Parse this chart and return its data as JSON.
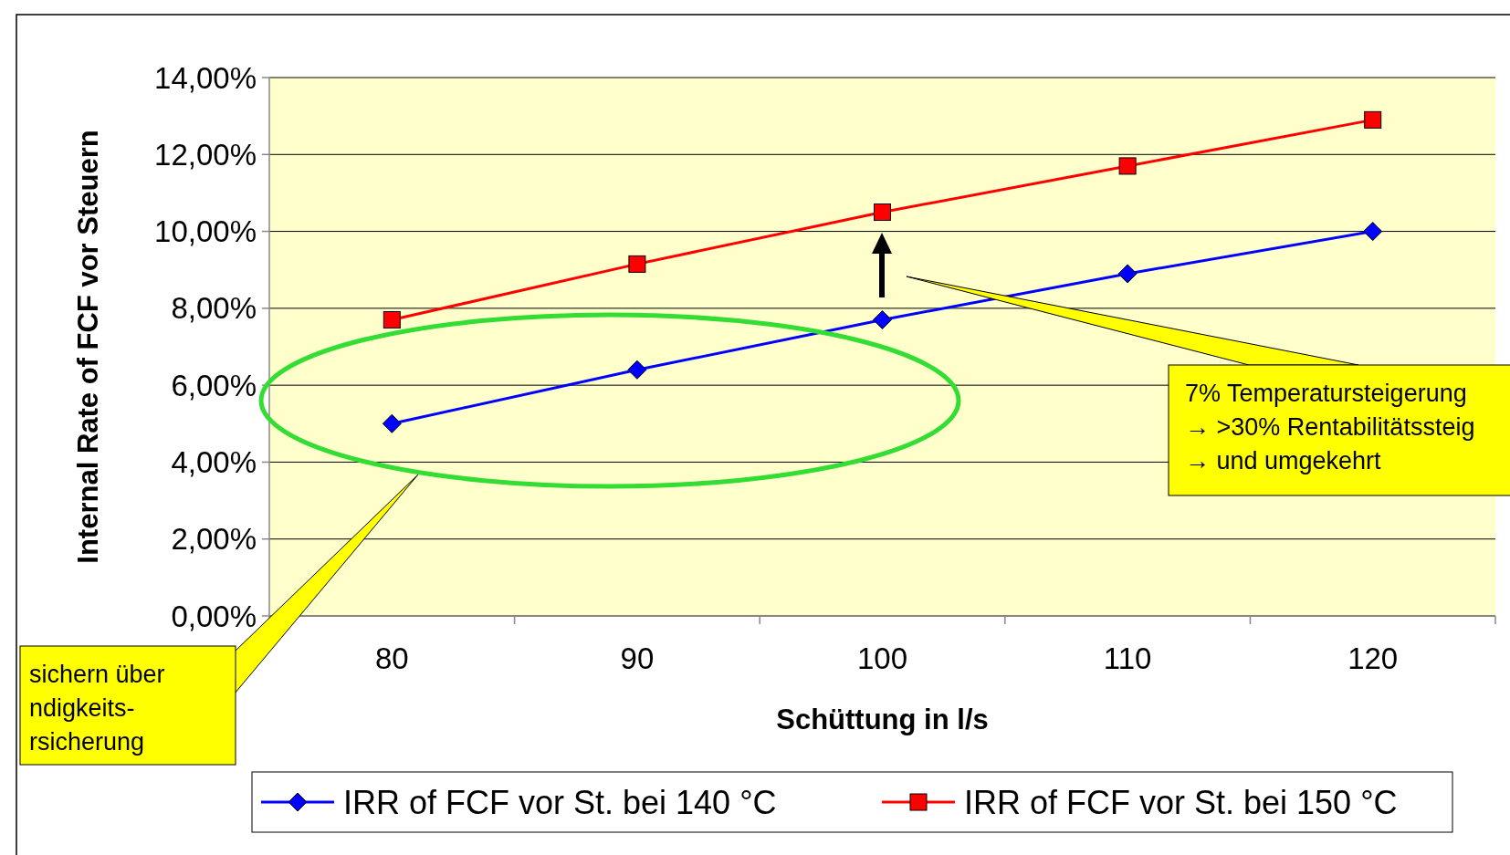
{
  "chart_data": {
    "type": "line",
    "xlabel": "Schüttung in l/s",
    "ylabel": "Internal Rate of FCF vor Steuern",
    "categories": [
      "80",
      "90",
      "100",
      "110",
      "120"
    ],
    "series": [
      {
        "name": "IRR of FCF vor St. bei 140 °C",
        "color": "#0000ff",
        "marker": "diamond",
        "values": [
          5.0,
          6.4,
          7.7,
          8.9,
          10.0
        ]
      },
      {
        "name": "IRR of FCF vor St. bei 150 °C",
        "color": "#ff0000",
        "marker": "square",
        "values": [
          7.7,
          9.15,
          10.5,
          11.7,
          12.9
        ]
      }
    ],
    "ylim": [
      0,
      14
    ],
    "yticks": [
      {
        "value": 0,
        "label": "0,00%"
      },
      {
        "value": 2,
        "label": "2,00%"
      },
      {
        "value": 4,
        "label": "4,00%"
      },
      {
        "value": 6,
        "label": "6,00%"
      },
      {
        "value": 8,
        "label": "8,00%"
      },
      {
        "value": 10,
        "label": "10,00%"
      },
      {
        "value": 12,
        "label": "12,00%"
      },
      {
        "value": 14,
        "label": "14,00%"
      }
    ],
    "grid": "y",
    "legend": "bottom",
    "line_style": "solid",
    "annotations": [
      "7% Temperatursteigerung\n→ >30% Rentabilitätssteig\n→ und umgekehrt",
      "sichern über\nndigkeits-\nrsicherung"
    ]
  }
}
